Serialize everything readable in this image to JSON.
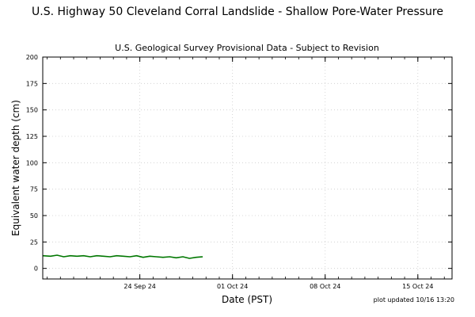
{
  "chart_data": {
    "type": "line",
    "title": "U.S. Highway 50 Cleveland Corral Landslide - Shallow Pore-Water Pressure",
    "subtitle": "U.S. Geological Survey Provisional Data - Subject to Revision",
    "xlabel": "Date (PST)",
    "ylabel": "Equivalent water depth (cm)",
    "footer": "plot updated 10/16 13:20",
    "grid": true,
    "xlim": [
      "2024-09-16T16:00",
      "2024-10-17T14:00"
    ],
    "ylim": [
      -10,
      200
    ],
    "yticks": [
      0,
      25,
      50,
      75,
      100,
      125,
      150,
      175,
      200
    ],
    "xticks": [
      {
        "date": "2024-09-24T00:00",
        "label": "24 Sep 24"
      },
      {
        "date": "2024-10-01T00:00",
        "label": "01 Oct 24"
      },
      {
        "date": "2024-10-08T00:00",
        "label": "08 Oct 24"
      },
      {
        "date": "2024-10-15T00:00",
        "label": "15 Oct 24"
      }
    ],
    "series": [
      {
        "color": "#007700",
        "x": [
          "2024-09-16T16:00",
          "2024-09-17T06:00",
          "2024-09-17T18:00",
          "2024-09-18T06:00",
          "2024-09-18T18:00",
          "2024-09-19T06:00",
          "2024-09-19T18:00",
          "2024-09-20T06:00",
          "2024-09-20T18:00",
          "2024-09-21T06:00",
          "2024-09-21T18:00",
          "2024-09-22T06:00",
          "2024-09-22T18:00",
          "2024-09-23T06:00",
          "2024-09-23T18:00",
          "2024-09-24T06:00",
          "2024-09-24T18:00",
          "2024-09-25T06:00",
          "2024-09-25T18:00",
          "2024-09-26T06:00",
          "2024-09-26T18:00",
          "2024-09-27T06:00",
          "2024-09-27T18:00",
          "2024-09-28T06:00",
          "2024-09-28T18:00"
        ],
        "y": [
          12,
          11.5,
          12.5,
          11,
          12,
          11.5,
          12,
          11,
          12,
          11.5,
          11,
          12,
          11.5,
          11,
          12,
          10.5,
          11.5,
          11,
          10.5,
          11,
          10,
          11,
          9.5,
          10.5,
          11
        ]
      }
    ]
  }
}
